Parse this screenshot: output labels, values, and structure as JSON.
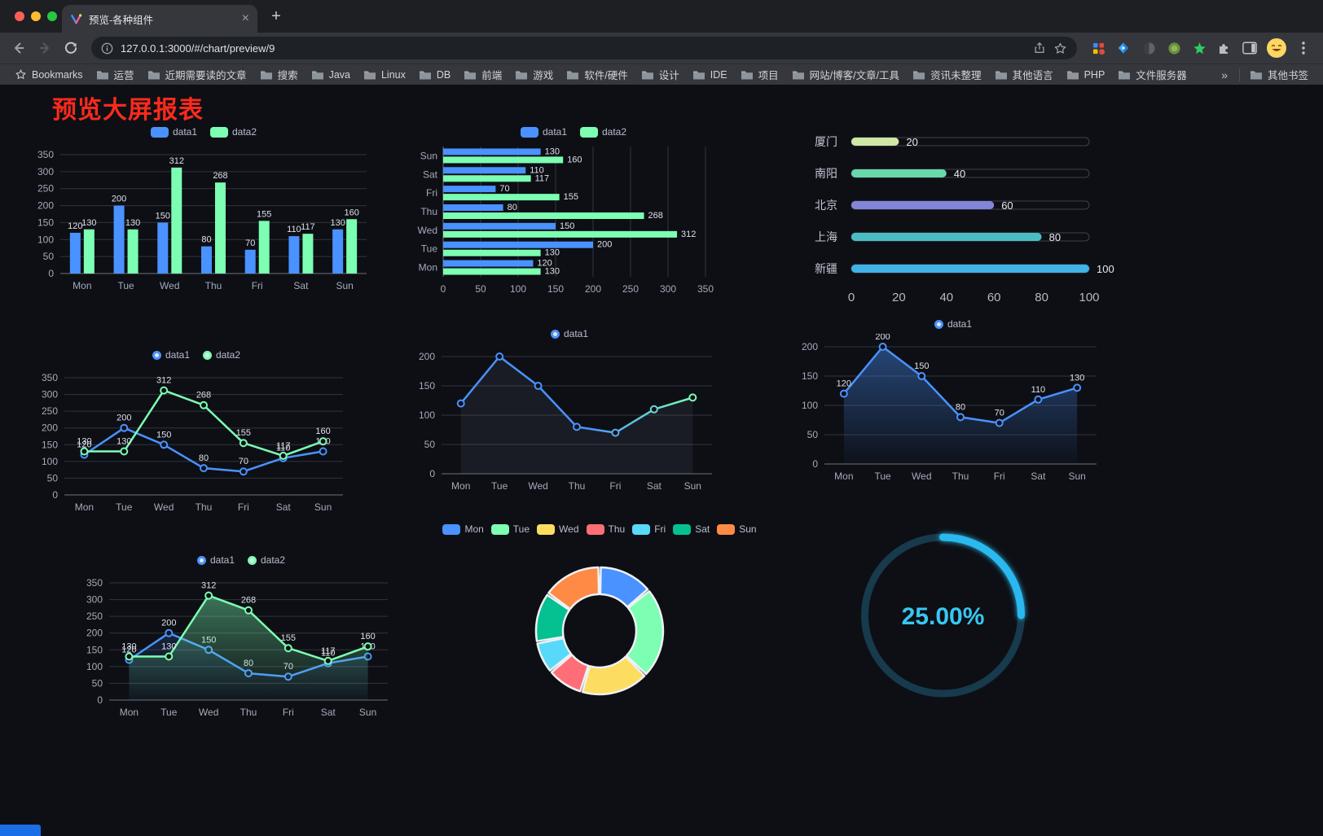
{
  "browser": {
    "tab": {
      "title": "预览-各种组件"
    },
    "new_tab_label": "+",
    "close_label": "×",
    "url": "127.0.0.1:3000/#/chart/preview/9",
    "bookmarks": {
      "first": "Bookmarks",
      "folders": [
        "运营",
        "近期需要读的文章",
        "搜索",
        "Java",
        "Linux",
        "DB",
        "前端",
        "游戏",
        "软件/硬件",
        "设计",
        "IDE",
        "项目",
        "网站/博客/文章/工具",
        "资讯未整理",
        "其他语言",
        "PHP",
        "文件服务器"
      ],
      "overflow": "»",
      "other": "其他书签"
    }
  },
  "page": {
    "title": "预览大屏报表",
    "title_color": "#fb2a1c",
    "background": "#0d0f15"
  },
  "palette": [
    "#4992ff",
    "#7cffb2",
    "#fddd60",
    "#ff6e76",
    "#58d9f9",
    "#05c091",
    "#ff8a45"
  ],
  "chart_data": [
    {
      "type": "bar",
      "orientation": "vertical",
      "categories": [
        "Mon",
        "Tue",
        "Wed",
        "Thu",
        "Fri",
        "Sat",
        "Sun"
      ],
      "series": [
        {
          "name": "data1",
          "values": [
            120,
            200,
            150,
            80,
            70,
            110,
            130
          ]
        },
        {
          "name": "data2",
          "values": [
            130,
            130,
            312,
            268,
            155,
            117,
            160
          ]
        }
      ],
      "ylim": [
        0,
        350
      ],
      "ytick_step": 50,
      "legend": [
        "data1",
        "data2"
      ],
      "legend_position": "top",
      "grid": true,
      "value_labels": true
    },
    {
      "type": "bar",
      "orientation": "horizontal",
      "categories": [
        "Mon",
        "Tue",
        "Wed",
        "Thu",
        "Fri",
        "Sat",
        "Sun"
      ],
      "series": [
        {
          "name": "data1",
          "values": [
            120,
            200,
            150,
            80,
            70,
            110,
            130
          ]
        },
        {
          "name": "data2",
          "values": [
            130,
            130,
            312,
            268,
            155,
            117,
            160
          ]
        }
      ],
      "xlim": [
        0,
        350
      ],
      "xtick_step": 50,
      "legend": [
        "data1",
        "data2"
      ],
      "legend_position": "top",
      "grid": true,
      "value_labels": true
    },
    {
      "type": "progress-bars",
      "rows": [
        {
          "label": "厦门",
          "value": 20,
          "color": "#cfe7a4"
        },
        {
          "label": "南阳",
          "value": 40,
          "color": "#67d9ab"
        },
        {
          "label": "北京",
          "value": 60,
          "color": "#8286d8"
        },
        {
          "label": "上海",
          "value": 80,
          "color": "#4abdc3"
        },
        {
          "label": "新疆",
          "value": 100,
          "color": "#3fb2e6"
        }
      ],
      "xlim": [
        0,
        100
      ],
      "xticks": [
        0,
        20,
        40,
        60,
        80,
        100
      ]
    },
    {
      "type": "line",
      "categories": [
        "Mon",
        "Tue",
        "Wed",
        "Thu",
        "Fri",
        "Sat",
        "Sun"
      ],
      "series": [
        {
          "name": "data1",
          "values": [
            120,
            200,
            150,
            80,
            70,
            110,
            130
          ]
        },
        {
          "name": "data2",
          "values": [
            130,
            130,
            312,
            268,
            155,
            117,
            160
          ]
        }
      ],
      "ylim": [
        0,
        350
      ],
      "ytick_step": 50,
      "legend": [
        "data1",
        "data2"
      ],
      "value_labels": true
    },
    {
      "type": "line",
      "categories": [
        "Mon",
        "Tue",
        "Wed",
        "Thu",
        "Fri",
        "Sat",
        "Sun"
      ],
      "series": [
        {
          "name": "data1",
          "values": [
            120,
            200,
            150,
            80,
            70,
            110,
            130
          ],
          "gradient": true,
          "shadow_area": true
        }
      ],
      "ylim": [
        0,
        200
      ],
      "ytick_step": 50,
      "legend": [
        "data1"
      ],
      "value_labels": false
    },
    {
      "type": "line",
      "categories": [
        "Mon",
        "Tue",
        "Wed",
        "Thu",
        "Fri",
        "Sat",
        "Sun"
      ],
      "series": [
        {
          "name": "data1",
          "values": [
            120,
            200,
            150,
            80,
            70,
            110,
            130
          ],
          "area": "strong"
        }
      ],
      "ylim": [
        0,
        200
      ],
      "ytick_step": 50,
      "legend": [
        "data1"
      ],
      "value_labels": true
    },
    {
      "type": "line",
      "categories": [
        "Mon",
        "Tue",
        "Wed",
        "Thu",
        "Fri",
        "Sat",
        "Sun"
      ],
      "series": [
        {
          "name": "data1",
          "values": [
            120,
            200,
            150,
            80,
            70,
            110,
            130
          ],
          "area": "faint"
        },
        {
          "name": "data2",
          "values": [
            130,
            130,
            312,
            268,
            155,
            117,
            160
          ],
          "area": "strong"
        }
      ],
      "ylim": [
        0,
        350
      ],
      "ytick_step": 50,
      "legend": [
        "data1",
        "data2"
      ],
      "value_labels": true
    },
    {
      "type": "pie",
      "variant": "donut",
      "slices": [
        {
          "label": "Mon",
          "value": 120
        },
        {
          "label": "Tue",
          "value": 200
        },
        {
          "label": "Wed",
          "value": 150
        },
        {
          "label": "Thu",
          "value": 80
        },
        {
          "label": "Fri",
          "value": 70
        },
        {
          "label": "Sat",
          "value": 110
        },
        {
          "label": "Sun",
          "value": 130
        }
      ],
      "legend": [
        "Mon",
        "Tue",
        "Wed",
        "Thu",
        "Fri",
        "Sat",
        "Sun"
      ],
      "legend_position": "top"
    },
    {
      "type": "gauge",
      "value": 25,
      "display": "25.00%"
    }
  ]
}
